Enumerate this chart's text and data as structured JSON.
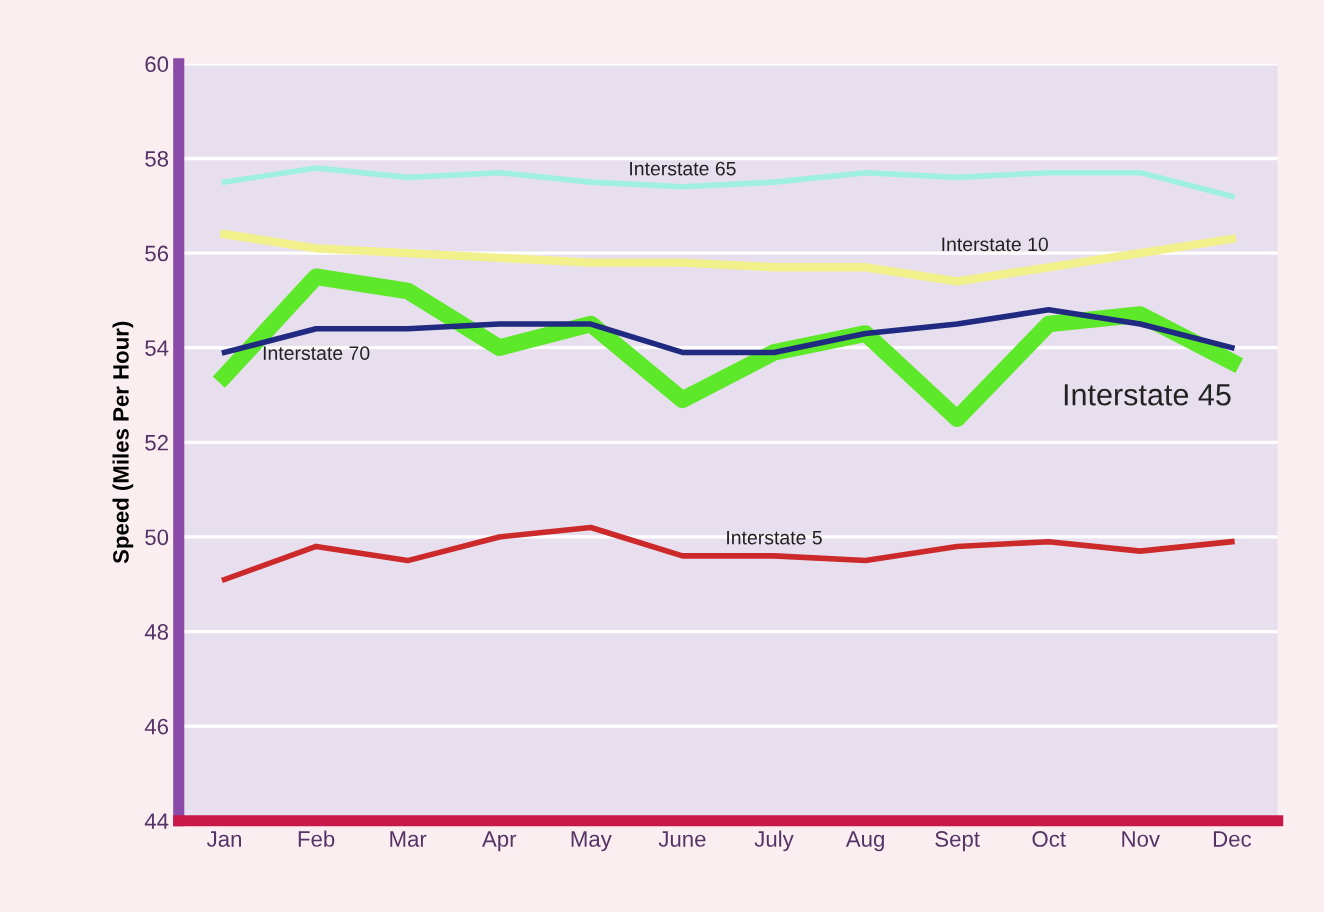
{
  "chart_data": {
    "type": "line",
    "ylabel": "Speed (Miles Per Hour)",
    "categories": [
      "Jan",
      "Feb",
      "Mar",
      "Apr",
      "May",
      "June",
      "July",
      "Aug",
      "Sept",
      "Oct",
      "Nov",
      "Dec"
    ],
    "series": [
      {
        "name": "Interstate 65",
        "color": "#9ff0e0",
        "values": [
          57.5,
          57.8,
          57.6,
          57.7,
          57.5,
          57.4,
          57.5,
          57.7,
          57.6,
          57.7,
          57.7,
          57.2
        ]
      },
      {
        "name": "Interstate 10",
        "color": "#f2f08a",
        "values": [
          56.4,
          56.1,
          56.0,
          55.9,
          55.8,
          55.8,
          55.7,
          55.7,
          55.4,
          55.7,
          56.0,
          56.3
        ]
      },
      {
        "name": "Interstate 45",
        "color": "#5de82a",
        "values": [
          53.4,
          55.5,
          55.2,
          54.0,
          54.5,
          52.9,
          53.9,
          54.3,
          52.5,
          54.5,
          54.7,
          53.7
        ]
      },
      {
        "name": "Interstate 70",
        "color": "#1f2a80",
        "values": [
          53.9,
          54.4,
          54.4,
          54.5,
          54.5,
          53.9,
          53.9,
          54.3,
          54.5,
          54.8,
          54.5,
          54.0
        ]
      },
      {
        "name": "Interstate 5",
        "color": "#cc2a2a",
        "values": [
          49.1,
          49.8,
          49.5,
          50.0,
          50.2,
          49.6,
          49.6,
          49.5,
          49.8,
          49.9,
          49.7,
          49.9
        ]
      }
    ],
    "ylim": [
      44,
      60
    ],
    "yticks": [
      44,
      46,
      48,
      50,
      52,
      54,
      56,
      58,
      60
    ],
    "grid": "y",
    "legend": false,
    "marker": "none",
    "line_style": "solid"
  }
}
